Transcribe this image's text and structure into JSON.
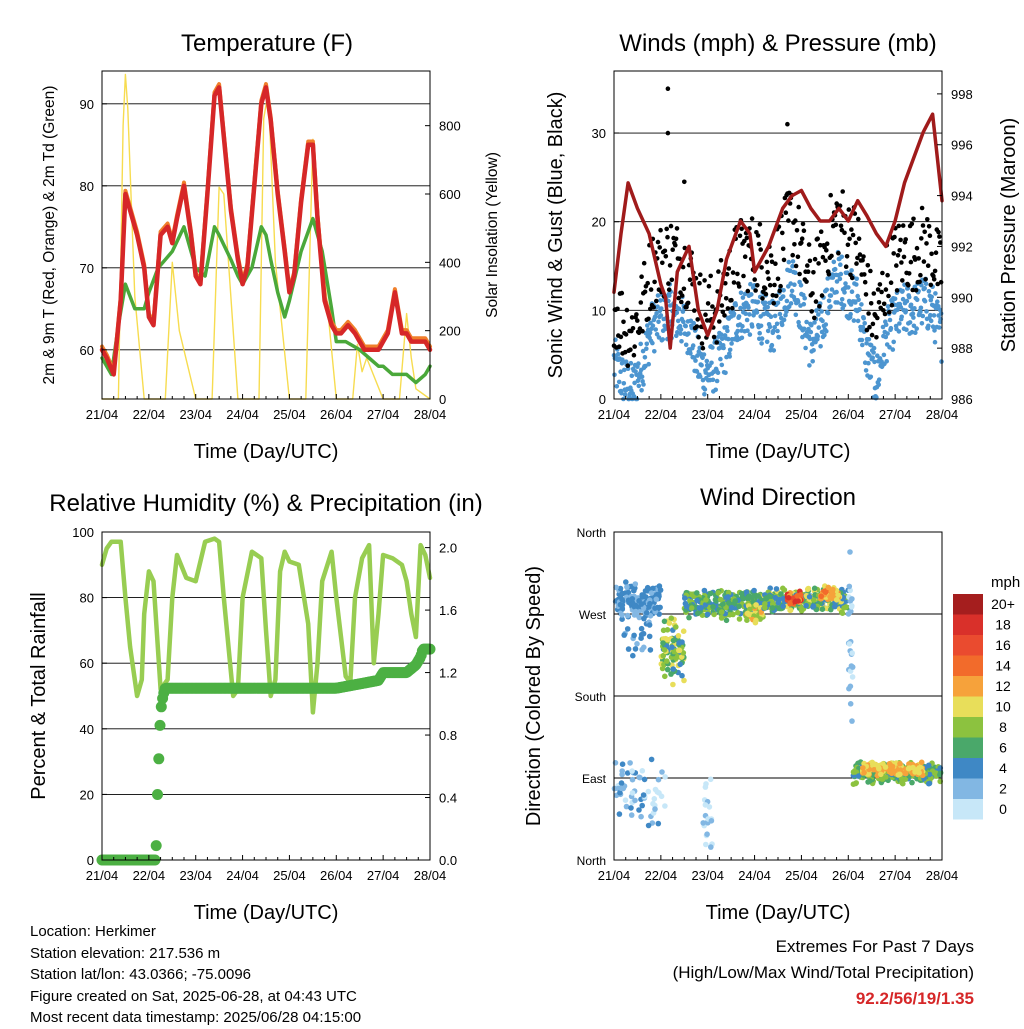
{
  "x_axis_ticks": [
    "21/04",
    "22/04",
    "23/04",
    "24/04",
    "25/04",
    "26/04",
    "27/04",
    "28/04"
  ],
  "info": {
    "location": "Location: Herkimer",
    "elevation": "Station elevation: 217.536 m",
    "latlon": "Station lat/lon: 43.0366; -75.0096",
    "created": "Figure created on Sat, 2025-06-28, at 04:43 UTC",
    "recent": "Most recent data timestamp: 2025/06/28 04:15:00"
  },
  "extremes": {
    "title": "Extremes For Past 7 Days",
    "subtitle": "(High/Low/Max Wind/Total Precipitation)",
    "values": "92.2/56/19/1.35"
  },
  "colors": {
    "temp_2m": "#d62728",
    "temp_9m": "#f07f2b",
    "dewpoint": "#4aa83a",
    "solar": "#f7dc50",
    "wind": "#4c95d0",
    "gust": "#000000",
    "pressure": "#a01b1b",
    "rh": "#98cd52",
    "precip": "#4cb043"
  },
  "chart_data": [
    {
      "type": "line",
      "title": "Temperature (F)",
      "xlabel": "Time (Day/UTC)",
      "ylabel": "2m & 9m T (Red, Orange) & 2m Td (Green)",
      "y2label": "Solar Insolation (Yellow)",
      "x_range_days": [
        0,
        7
      ],
      "ylim": [
        54,
        94
      ],
      "y2lim": [
        0,
        960
      ],
      "yticks": [
        60,
        70,
        80,
        90
      ],
      "y2ticks": [
        0,
        200,
        400,
        600,
        800
      ],
      "grid": true,
      "series": [
        {
          "key": "temp_2m",
          "axis": "left",
          "x": [
            0,
            0.1,
            0.25,
            0.4,
            0.5,
            0.6,
            0.75,
            0.9,
            1.0,
            1.1,
            1.25,
            1.4,
            1.5,
            1.6,
            1.75,
            1.9,
            2.0,
            2.1,
            2.25,
            2.4,
            2.5,
            2.6,
            2.75,
            2.9,
            3.0,
            3.1,
            3.25,
            3.4,
            3.5,
            3.6,
            3.75,
            3.9,
            4.0,
            4.1,
            4.25,
            4.4,
            4.5,
            4.6,
            4.75,
            4.9,
            5.0,
            5.1,
            5.25,
            5.4,
            5.5,
            5.6,
            5.75,
            5.9,
            6.0,
            6.1,
            6.25,
            6.4,
            6.5,
            6.6,
            6.75,
            6.9,
            7.0
          ],
          "y": [
            60,
            59,
            57,
            66,
            79,
            77,
            74,
            70,
            64,
            63,
            74,
            75,
            73,
            76,
            80,
            74,
            69,
            68,
            79,
            91,
            92,
            86,
            77,
            71,
            68,
            70,
            80,
            90,
            92,
            88,
            79,
            72,
            67,
            69,
            78,
            85,
            85,
            76,
            66,
            63,
            62,
            62,
            63,
            62,
            61,
            60,
            60,
            60,
            61,
            62,
            67,
            62,
            62,
            61,
            61,
            61,
            60
          ]
        },
        {
          "key": "dewpoint",
          "axis": "left",
          "x": [
            0,
            0.2,
            0.35,
            0.5,
            0.7,
            0.9,
            1.0,
            1.2,
            1.35,
            1.5,
            1.75,
            1.9,
            2.0,
            2.2,
            2.4,
            2.5,
            2.75,
            2.9,
            3.0,
            3.2,
            3.4,
            3.5,
            3.6,
            3.75,
            3.9,
            4.0,
            4.25,
            4.5,
            4.7,
            4.9,
            5.0,
            5.2,
            5.5,
            5.7,
            5.9,
            6.0,
            6.2,
            6.5,
            6.7,
            6.9,
            7.0
          ],
          "y": [
            59,
            57,
            63,
            68,
            65,
            65,
            67,
            70,
            71,
            72,
            75,
            72,
            70,
            69,
            75,
            74,
            71,
            69,
            68,
            70,
            75,
            74,
            71,
            67,
            64,
            66,
            72,
            76,
            72,
            65,
            61,
            61,
            60,
            59,
            58,
            58,
            57,
            57,
            56,
            57,
            58
          ]
        },
        {
          "key": "solar",
          "axis": "right",
          "x": [
            0,
            0.35,
            0.45,
            0.5,
            0.55,
            0.7,
            0.9,
            1.35,
            1.5,
            1.65,
            2.0,
            2.35,
            2.5,
            2.6,
            2.9,
            3.35,
            3.45,
            3.55,
            3.7,
            4.0,
            4.35,
            4.5,
            4.65,
            5.0,
            5.35,
            5.45,
            5.55,
            5.65,
            6.0,
            6.35,
            6.5,
            6.6,
            6.7,
            7.0
          ],
          "y": [
            0,
            0,
            800,
            950,
            850,
            300,
            0,
            0,
            400,
            200,
            0,
            0,
            620,
            600,
            0,
            0,
            820,
            900,
            400,
            0,
            0,
            760,
            500,
            0,
            0,
            160,
            80,
            120,
            0,
            0,
            250,
            120,
            30,
            0
          ]
        }
      ]
    },
    {
      "type": "scatter",
      "title": "Winds (mph) & Pressure (mb)",
      "xlabel": "Time (Day/UTC)",
      "ylabel": "Sonic Wind & Gust (Blue, Black)",
      "y2label": "Station Pressure (Maroon)",
      "x_range_days": [
        0,
        7
      ],
      "ylim": [
        0,
        37
      ],
      "y2lim": [
        986,
        998.9
      ],
      "yticks": [
        0,
        10,
        20,
        30
      ],
      "y2ticks": [
        986,
        988,
        990,
        992,
        994,
        996,
        998
      ],
      "grid": true,
      "wind_profile": {
        "x": [
          0,
          0.2,
          0.4,
          0.6,
          0.8,
          1.0,
          1.2,
          1.4,
          1.6,
          1.8,
          2.0,
          2.2,
          2.4,
          2.6,
          2.8,
          3.0,
          3.2,
          3.4,
          3.6,
          3.8,
          4.0,
          4.2,
          4.4,
          4.6,
          4.8,
          5.0,
          5.2,
          5.4,
          5.6,
          5.8,
          6.0,
          6.2,
          6.4,
          6.6,
          6.8,
          7.0
        ],
        "y": [
          4,
          2,
          1,
          4,
          8,
          9,
          10,
          9,
          8,
          4,
          3,
          4,
          6,
          9,
          10,
          10,
          9,
          8,
          11,
          14,
          10,
          6,
          8,
          12,
          14,
          12,
          11,
          5,
          2,
          7,
          9,
          10,
          10,
          11,
          10,
          7
        ]
      },
      "gust_extra_points": [
        {
          "x": 1.15,
          "y": 35
        },
        {
          "x": 1.15,
          "y": 30
        },
        {
          "x": 1.5,
          "y": 24.5
        },
        {
          "x": 3.7,
          "y": 31
        }
      ],
      "pressure": {
        "x": [
          0,
          0.15,
          0.3,
          0.5,
          0.75,
          1.0,
          1.1,
          1.2,
          1.35,
          1.6,
          1.8,
          2.0,
          2.2,
          2.4,
          2.7,
          2.9,
          3.0,
          3.3,
          3.6,
          3.8,
          4.0,
          4.2,
          4.4,
          4.6,
          4.8,
          5.0,
          5.2,
          5.4,
          5.6,
          5.8,
          6.0,
          6.2,
          6.4,
          6.6,
          6.8,
          7.0
        ],
        "y": [
          990.2,
          992.5,
          994.5,
          993.5,
          992.5,
          990.5,
          990,
          988,
          991,
          992,
          989.5,
          988.5,
          989.5,
          991.5,
          993,
          992.5,
          991,
          992,
          993.5,
          994,
          994.2,
          993.5,
          993,
          993,
          993.5,
          993,
          993.8,
          993.2,
          992.5,
          992,
          993,
          994.5,
          995.5,
          996.5,
          997.2,
          993.8
        ]
      }
    },
    {
      "type": "line",
      "title": "Relative Humidity (%) & Precipitation (in)",
      "xlabel": "Time (Day/UTC)",
      "ylabel": "Percent & Total Rainfall",
      "x_range_days": [
        0,
        7
      ],
      "ylim": [
        0,
        100
      ],
      "y2lim": [
        0,
        2.1
      ],
      "yticks": [
        0,
        20,
        40,
        60,
        80,
        100
      ],
      "y2ticks": [
        0.0,
        0.4,
        0.8,
        1.2,
        1.6,
        2.0
      ],
      "y2tick_labels": [
        "0.0",
        "0.4",
        "0.8",
        "1.2",
        "1.6",
        "2.0"
      ],
      "grid": true,
      "series": [
        {
          "key": "rh",
          "axis": "left",
          "x": [
            0,
            0.1,
            0.2,
            0.4,
            0.5,
            0.6,
            0.75,
            0.85,
            0.9,
            1.0,
            1.1,
            1.25,
            1.4,
            1.5,
            1.6,
            1.8,
            2.0,
            2.2,
            2.4,
            2.5,
            2.6,
            2.8,
            2.9,
            3.0,
            3.2,
            3.4,
            3.5,
            3.6,
            3.7,
            3.8,
            3.9,
            4.0,
            4.2,
            4.4,
            4.5,
            4.6,
            4.7,
            4.9,
            5.0,
            5.2,
            5.3,
            5.4,
            5.55,
            5.7,
            5.8,
            5.9,
            6.0,
            6.2,
            6.4,
            6.5,
            6.6,
            6.7,
            6.8,
            6.9,
            7.0
          ],
          "y": [
            90,
            95,
            97,
            97,
            80,
            65,
            50,
            55,
            75,
            88,
            85,
            52,
            55,
            80,
            93,
            86,
            85,
            97,
            98,
            97,
            80,
            50,
            52,
            80,
            94,
            92,
            70,
            50,
            55,
            88,
            94,
            91,
            90,
            72,
            45,
            60,
            85,
            94,
            80,
            56,
            54,
            80,
            92,
            96,
            60,
            75,
            93,
            92,
            90,
            85,
            75,
            68,
            96,
            93,
            86
          ]
        },
        {
          "key": "precip",
          "axis": "right",
          "x": [
            0,
            1.15,
            1.16,
            1.18,
            1.2,
            1.22,
            1.25,
            1.3,
            1.35,
            1.5,
            2.0,
            4.0,
            5.0,
            5.9,
            6.0,
            6.5,
            6.7,
            6.8,
            6.85,
            7.0
          ],
          "y": [
            0,
            0,
            0.12,
            0.38,
            0.55,
            0.72,
            0.95,
            1.05,
            1.1,
            1.1,
            1.1,
            1.1,
            1.1,
            1.15,
            1.2,
            1.2,
            1.25,
            1.3,
            1.35,
            1.35
          ]
        }
      ]
    },
    {
      "type": "scatter",
      "title": "Wind Direction",
      "xlabel": "Time (Day/UTC)",
      "ylabel": "Direction (Colored By Speed)",
      "x_range_days": [
        0,
        7
      ],
      "ylim": [
        0,
        360
      ],
      "yticks": [
        0,
        90,
        180,
        270,
        360
      ],
      "ytick_labels": [
        "North",
        "East",
        "South",
        "West",
        "North"
      ],
      "grid": true,
      "clusters": [
        {
          "x0": 0.0,
          "x1": 1.0,
          "dir": 285,
          "spread": 22,
          "speed": [
            2,
            5
          ],
          "n": 130
        },
        {
          "x0": 0.2,
          "x1": 0.8,
          "dir": 250,
          "spread": 30,
          "speed": [
            2,
            5
          ],
          "n": 25
        },
        {
          "x0": 1.0,
          "x1": 1.5,
          "dir": 230,
          "spread": 40,
          "speed": [
            4,
            11
          ],
          "n": 90
        },
        {
          "x0": 1.5,
          "x1": 3.2,
          "dir": 280,
          "spread": 18,
          "speed": [
            3,
            9
          ],
          "n": 240
        },
        {
          "x0": 2.8,
          "x1": 3.2,
          "dir": 270,
          "spread": 12,
          "speed": [
            8,
            12
          ],
          "n": 30
        },
        {
          "x0": 3.2,
          "x1": 5.0,
          "dir": 285,
          "spread": 15,
          "speed": [
            3,
            10
          ],
          "n": 260
        },
        {
          "x0": 3.7,
          "x1": 4.0,
          "dir": 288,
          "spread": 10,
          "speed": [
            12,
            19
          ],
          "n": 40
        },
        {
          "x0": 4.4,
          "x1": 4.8,
          "dir": 292,
          "spread": 10,
          "speed": [
            10,
            14
          ],
          "n": 45
        },
        {
          "x0": 5.0,
          "x1": 5.1,
          "dir": 230,
          "spread": 120,
          "speed": [
            0,
            3
          ],
          "n": 25
        },
        {
          "x0": 5.1,
          "x1": 7.0,
          "dir": 95,
          "spread": 14,
          "speed": [
            4,
            9
          ],
          "n": 230
        },
        {
          "x0": 5.3,
          "x1": 6.6,
          "dir": 100,
          "spread": 8,
          "speed": [
            9,
            13
          ],
          "n": 120
        },
        {
          "x0": 0.0,
          "x1": 1.1,
          "dir": 70,
          "spread": 45,
          "speed": [
            0,
            4
          ],
          "n": 60
        },
        {
          "x0": 1.9,
          "x1": 2.1,
          "dir": 50,
          "spread": 50,
          "speed": [
            0,
            2
          ],
          "n": 20
        }
      ],
      "colorbar": {
        "title": "mph",
        "labels": [
          "20+",
          "18",
          "16",
          "14",
          "12",
          "10",
          "8",
          "6",
          "4",
          "2",
          "0"
        ],
        "colors": [
          "#a51e1e",
          "#d9302a",
          "#ea4b2f",
          "#f26b2b",
          "#f6a23b",
          "#e8de5a",
          "#8cc23f",
          "#4aa86a",
          "#3f88c5",
          "#82b7e3",
          "#c7e7f8"
        ]
      }
    }
  ]
}
